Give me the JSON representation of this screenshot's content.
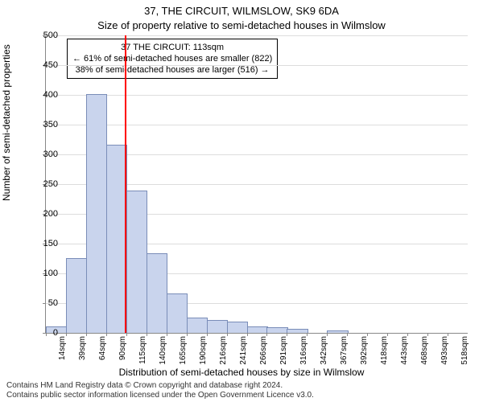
{
  "title_main": "37, THE CIRCUIT, WILMSLOW, SK9 6DA",
  "title_sub": "Size of property relative to semi-detached houses in Wilmslow",
  "ylabel": "Number of semi-detached properties",
  "xlabel": "Distribution of semi-detached houses by size in Wilmslow",
  "caption_l1": "Contains HM Land Registry data © Crown copyright and database right 2024.",
  "caption_l2": "Contains public sector information licensed under the Open Government Licence v3.0.",
  "annot_l1": "37 THE CIRCUIT: 113sqm",
  "annot_l2": "← 61% of semi-detached houses are smaller (822)",
  "annot_l3": "38% of semi-detached houses are larger (516) →",
  "chart": {
    "type": "histogram",
    "background_color": "#ffffff",
    "grid_color": "#dddddd",
    "axis_color": "#888888",
    "bar_fill": "#c9d4ed",
    "bar_stroke": "#7a8db8",
    "refline_color": "#ff0000",
    "refline_x": 113,
    "x_min": 14,
    "x_bin_width": 25.26,
    "ylim": [
      0,
      500
    ],
    "ytick_step": 50,
    "yticks": [
      0,
      50,
      100,
      150,
      200,
      250,
      300,
      350,
      400,
      450,
      500
    ],
    "xtick_labels": [
      "14sqm",
      "39sqm",
      "64sqm",
      "90sqm",
      "115sqm",
      "140sqm",
      "165sqm",
      "190sqm",
      "216sqm",
      "241sqm",
      "266sqm",
      "291sqm",
      "316sqm",
      "342sqm",
      "367sqm",
      "392sqm",
      "418sqm",
      "443sqm",
      "468sqm",
      "493sqm",
      "518sqm"
    ],
    "values": [
      10,
      125,
      400,
      315,
      238,
      132,
      65,
      25,
      20,
      18,
      10,
      8,
      5,
      0,
      3,
      0,
      0,
      0,
      0,
      0,
      0
    ],
    "title_fontsize": 13,
    "label_fontsize": 12,
    "tick_fontsize": 11,
    "annot_fontsize": 11
  }
}
